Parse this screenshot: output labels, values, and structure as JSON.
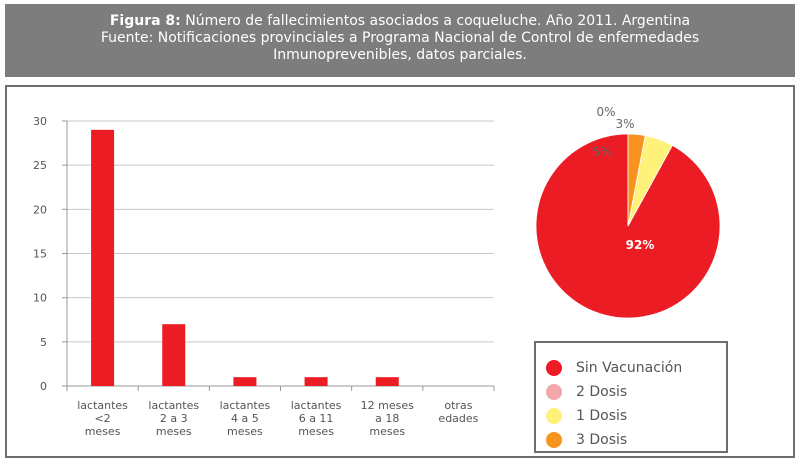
{
  "header": {
    "figure_label": "Figura 8:",
    "title_rest": " Número de fallecimientos asociados a coqueluche. Año 2011. Argentina",
    "line2": "Fuente: Notificaciones provinciales a Programa Nacional de Control de enfermedades",
    "line3": "Inmunoprevenibles, datos parciales."
  },
  "colors": {
    "red": "#ec1c24",
    "pink": "#f4a7a8",
    "yellow": "#fef27a",
    "orange": "#f7931e",
    "header_bg": "#7d7d7d"
  },
  "chart_data": [
    {
      "type": "bar",
      "categories": [
        [
          "lactantes",
          "<2",
          "meses"
        ],
        [
          "lactantes",
          "2 a 3",
          "meses"
        ],
        [
          "lactantes",
          "4 a 5",
          "meses"
        ],
        [
          "lactantes",
          "6 a 11",
          "meses"
        ],
        [
          "12 meses",
          "a 18",
          "meses"
        ],
        [
          "otras",
          "edades"
        ]
      ],
      "values": [
        29,
        7,
        1,
        1,
        1,
        0
      ],
      "ylim": [
        0,
        30
      ],
      "yticks": [
        0,
        5,
        10,
        15,
        20,
        25,
        30
      ],
      "grid": true,
      "bar_color": "#ec1c24"
    },
    {
      "type": "pie",
      "slices": [
        {
          "name": "Sin Vacunación",
          "value": 92,
          "label": "92%",
          "color": "#ec1c24"
        },
        {
          "name": "2 Dosis",
          "value": 0,
          "label": "0%",
          "color": "#f4a7a8"
        },
        {
          "name": "1 Dosis",
          "value": 5,
          "label": "5%",
          "color": "#fef27a"
        },
        {
          "name": "3 Dosis",
          "value": 3,
          "label": "3%",
          "color": "#f7931e"
        }
      ],
      "legend": [
        "Sin Vacunación",
        "2 Dosis",
        "1 Dosis",
        "3 Dosis"
      ],
      "legend_position": "bottom-right"
    }
  ]
}
